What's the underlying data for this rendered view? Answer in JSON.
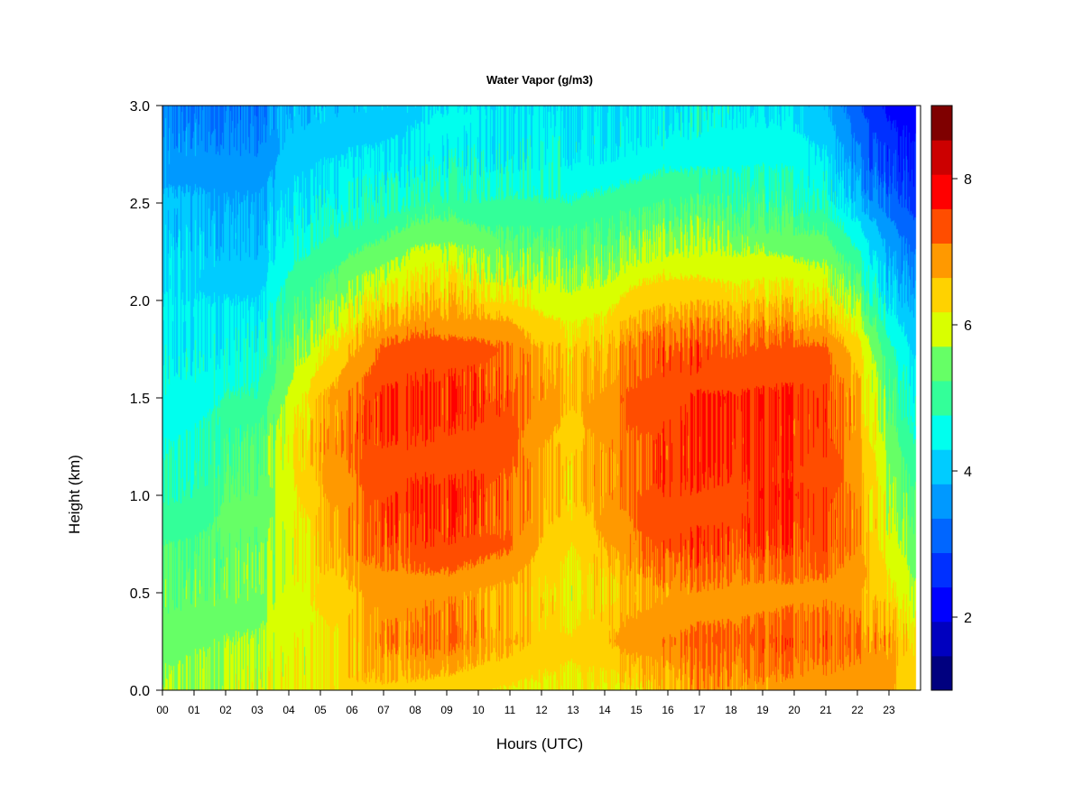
{
  "chart_data": {
    "type": "heatmap",
    "title": "Water Vapor (g/m3)",
    "xlabel": "Hours (UTC)",
    "ylabel": "Height (km)",
    "xlim": [
      0,
      24
    ],
    "ylim": [
      0.0,
      3.0
    ],
    "x_ticks": [
      "00",
      "01",
      "02",
      "03",
      "04",
      "05",
      "06",
      "07",
      "08",
      "09",
      "10",
      "11",
      "12",
      "13",
      "14",
      "15",
      "16",
      "17",
      "18",
      "19",
      "20",
      "21",
      "22",
      "23"
    ],
    "y_ticks": [
      "0.0",
      "0.5",
      "1.0",
      "1.5",
      "2.0",
      "2.5",
      "3.0"
    ],
    "colorbar": {
      "min": 1,
      "max": 9,
      "ticks": [
        "2",
        "4",
        "6",
        "8"
      ],
      "levels": 16,
      "colors": [
        "#00007f",
        "#0000bf",
        "#0000ff",
        "#0030ff",
        "#0066ff",
        "#0099ff",
        "#00ccff",
        "#00ffee",
        "#33ff99",
        "#66ff66",
        "#d9ff00",
        "#ffd200",
        "#ff9900",
        "#ff4d00",
        "#ff0000",
        "#cc0000",
        "#7f0000"
      ]
    },
    "x_hours": [
      0,
      1,
      2,
      3,
      4,
      5,
      6,
      7,
      8,
      9,
      10,
      11,
      12,
      13,
      14,
      15,
      16,
      17,
      18,
      19,
      20,
      21,
      22,
      23,
      24
    ],
    "heights_km": [
      0.0,
      0.25,
      0.5,
      0.75,
      1.0,
      1.25,
      1.5,
      1.75,
      2.0,
      2.25,
      2.5,
      2.75,
      3.0
    ],
    "values": [
      [
        5.6,
        5.5,
        5.3,
        5.2,
        4.8,
        4.6,
        4.6,
        4.4,
        4.3,
        4.1,
        3.9,
        3.6,
        3.4
      ],
      [
        5.7,
        5.6,
        5.4,
        5.2,
        4.9,
        4.7,
        4.6,
        4.4,
        4.3,
        4.1,
        3.9,
        3.6,
        3.3
      ],
      [
        5.8,
        5.7,
        5.5,
        5.4,
        5.3,
        5.1,
        4.8,
        4.5,
        4.3,
        4.0,
        3.8,
        3.5,
        3.3
      ],
      [
        5.9,
        5.7,
        5.5,
        5.4,
        5.3,
        5.2,
        4.8,
        4.6,
        4.2,
        3.9,
        3.7,
        3.4,
        3.2
      ],
      [
        6.1,
        6.0,
        5.9,
        5.9,
        6.0,
        6.1,
        5.8,
        5.4,
        5.0,
        4.6,
        4.3,
        4.0,
        3.9
      ],
      [
        6.2,
        6.1,
        6.3,
        6.5,
        6.6,
        6.8,
        6.6,
        6.0,
        5.4,
        4.9,
        4.5,
        4.2,
        4.0
      ],
      [
        6.4,
        6.5,
        6.6,
        6.9,
        7.0,
        7.2,
        7.1,
        6.6,
        5.8,
        5.2,
        4.6,
        4.3,
        4.0
      ],
      [
        6.5,
        6.9,
        6.8,
        7.3,
        7.4,
        7.4,
        7.5,
        7.2,
        6.2,
        5.4,
        4.7,
        4.3,
        4.1
      ],
      [
        6.5,
        7.1,
        6.9,
        7.4,
        7.6,
        7.5,
        7.6,
        7.4,
        6.5,
        5.8,
        4.9,
        4.4,
        4.2
      ],
      [
        6.4,
        7.1,
        6.9,
        7.4,
        7.5,
        7.4,
        7.5,
        7.3,
        6.5,
        5.8,
        5.0,
        4.5,
        4.3
      ],
      [
        6.3,
        6.9,
        6.8,
        7.3,
        7.5,
        7.4,
        7.5,
        7.3,
        6.4,
        5.6,
        4.9,
        4.5,
        4.3
      ],
      [
        6.2,
        6.8,
        6.7,
        7.2,
        7.3,
        7.3,
        7.4,
        7.2,
        6.3,
        5.5,
        4.9,
        4.5,
        4.3
      ],
      [
        6.1,
        6.4,
        6.3,
        6.6,
        6.7,
        6.7,
        6.9,
        6.6,
        6.0,
        5.4,
        4.8,
        4.5,
        4.3
      ],
      [
        6.1,
        6.3,
        6.1,
        6.2,
        6.4,
        6.4,
        6.6,
        6.4,
        5.9,
        5.3,
        4.8,
        4.4,
        4.2
      ],
      [
        6.2,
        6.6,
        6.4,
        6.7,
        6.9,
        6.9,
        6.9,
        6.6,
        6.0,
        5.4,
        4.9,
        4.4,
        4.3
      ],
      [
        6.3,
        6.9,
        6.6,
        7.1,
        7.2,
        7.2,
        7.3,
        7.1,
        6.4,
        5.7,
        5.0,
        4.5,
        4.3
      ],
      [
        6.5,
        7.1,
        6.8,
        7.4,
        7.5,
        7.4,
        7.5,
        7.3,
        6.5,
        5.8,
        5.1,
        4.6,
        4.3
      ],
      [
        6.8,
        7.2,
        6.9,
        7.4,
        7.5,
        7.5,
        7.6,
        7.3,
        6.5,
        5.8,
        5.1,
        4.6,
        4.4
      ],
      [
        6.8,
        7.2,
        6.9,
        7.3,
        7.5,
        7.5,
        7.6,
        7.2,
        6.4,
        5.7,
        5.0,
        4.6,
        4.4
      ],
      [
        6.8,
        7.3,
        6.9,
        7.4,
        7.6,
        7.5,
        7.6,
        7.3,
        6.4,
        5.7,
        5.0,
        4.6,
        4.3
      ],
      [
        6.8,
        7.3,
        7.0,
        7.4,
        7.6,
        7.5,
        7.6,
        7.3,
        6.4,
        5.6,
        4.9,
        4.5,
        4.2
      ],
      [
        6.8,
        7.3,
        7.0,
        7.4,
        7.5,
        7.5,
        7.5,
        7.2,
        6.3,
        5.5,
        4.8,
        4.3,
        3.9
      ],
      [
        6.8,
        7.1,
        6.8,
        7.0,
        6.9,
        6.8,
        6.8,
        6.4,
        5.6,
        4.8,
        4.0,
        3.4,
        3.0
      ],
      [
        6.7,
        6.9,
        6.3,
        6.0,
        5.8,
        5.6,
        5.3,
        4.9,
        4.3,
        3.8,
        3.2,
        2.7,
        2.3
      ],
      [
        6.4,
        6.0,
        5.6,
        5.3,
        5.0,
        4.6,
        4.3,
        4.0,
        3.6,
        3.1,
        2.6,
        2.3,
        2.1
      ]
    ]
  }
}
